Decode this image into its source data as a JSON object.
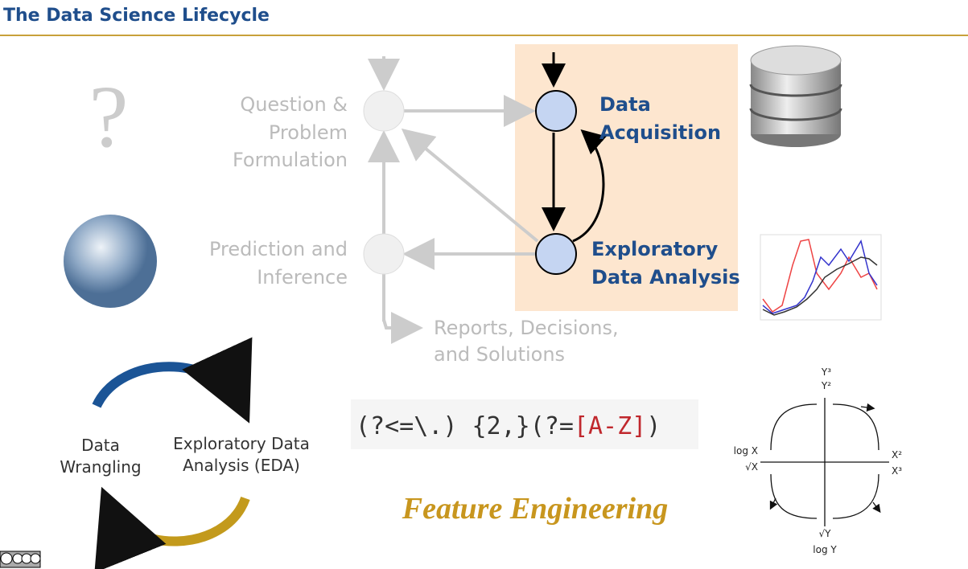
{
  "header": {
    "title": "The Data Science Lifecycle"
  },
  "lifecycle": {
    "question_icon": "?",
    "question": [
      "Question &",
      "Problem",
      "Formulation"
    ],
    "acquisition": [
      "Data",
      "Acquisition"
    ],
    "eda": [
      "Exploratory",
      "Data Analysis"
    ],
    "prediction": [
      "Prediction and",
      "Inference"
    ],
    "reports": [
      "Reports, Decisions,",
      "and Solutions"
    ]
  },
  "cycle": {
    "wrangling": [
      "Data",
      "Wrangling"
    ],
    "eda": [
      "Exploratory Data",
      "Analysis (EDA)"
    ]
  },
  "regex": {
    "start": "(?<=\\.) {2,}(?=",
    "class": "[A-Z]",
    "end": ")"
  },
  "feature": "Feature Engineering",
  "bulge": {
    "top1": "Y³",
    "top2": "Y²",
    "left1": "log X",
    "left2": "√X",
    "right1": "X²",
    "right2": "X³",
    "bottom1": "√Y",
    "bottom2": "log Y"
  }
}
